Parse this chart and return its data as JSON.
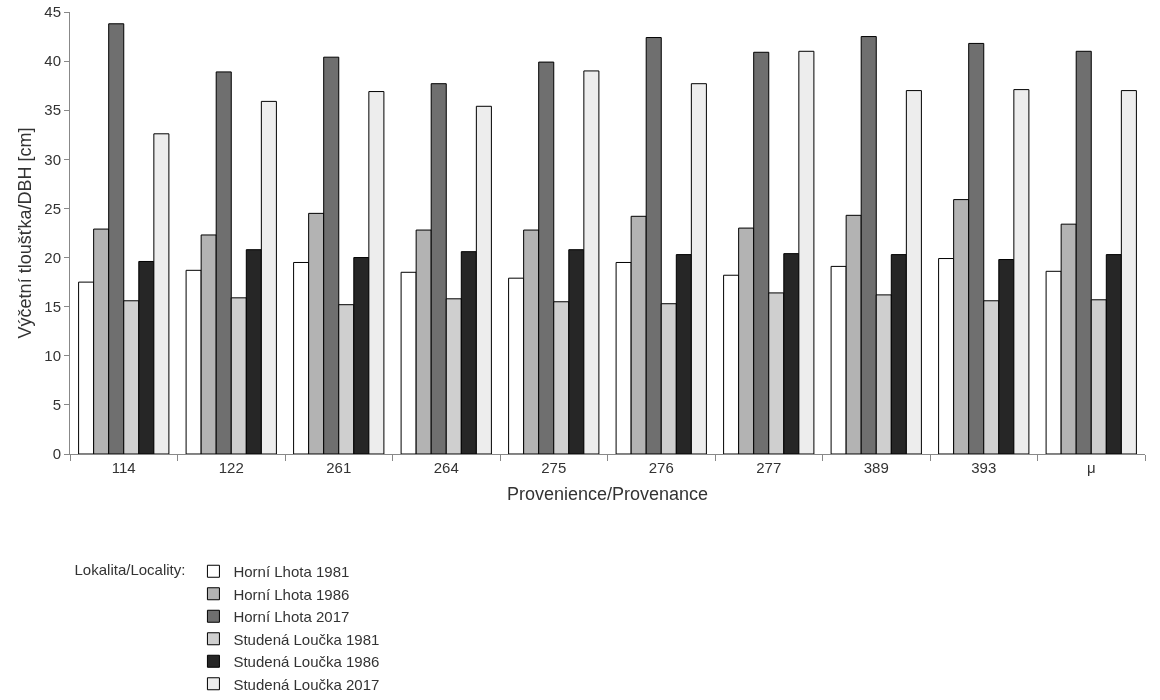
{
  "chart_data": {
    "type": "bar",
    "xlabel": "Provenience/Provenance",
    "ylabel": "Výčetní tloušťka/DBH [cm]",
    "legend_title": "Lokalita/Locality:",
    "legend": "bottom",
    "grid": false,
    "categories": [
      "114",
      "122",
      "261",
      "264",
      "275",
      "276",
      "277",
      "389",
      "393",
      "μ"
    ],
    "ylim": [
      0,
      45
    ],
    "yticks": [
      0,
      5,
      10,
      15,
      20,
      25,
      30,
      35,
      40,
      45
    ],
    "series": [
      {
        "name": "Horní Lhota 1981",
        "color": "#ffffff",
        "values": [
          17.5,
          18.7,
          19.5,
          18.5,
          17.9,
          19.5,
          18.2,
          19.1,
          19.9,
          18.6
        ]
      },
      {
        "name": "Horní Lhota 1986",
        "color": "#b3b3b3",
        "values": [
          22.9,
          22.3,
          24.5,
          22.8,
          22.8,
          24.2,
          23.0,
          24.3,
          25.9,
          23.4
        ]
      },
      {
        "name": "Horní Lhota 2017",
        "color": "#6f6f6f",
        "values": [
          43.8,
          38.9,
          40.4,
          37.7,
          39.9,
          42.4,
          40.9,
          42.5,
          41.8,
          41.0
        ]
      },
      {
        "name": "Studená Loučka 1981",
        "color": "#cfcfcf",
        "values": [
          15.6,
          15.9,
          15.2,
          15.8,
          15.5,
          15.3,
          16.4,
          16.2,
          15.6,
          15.7
        ]
      },
      {
        "name": "Studená Loučka 1986",
        "color": "#262626",
        "values": [
          19.6,
          20.8,
          20.0,
          20.6,
          20.8,
          20.3,
          20.4,
          20.3,
          19.8,
          20.3
        ]
      },
      {
        "name": "Studená Loučka 2017",
        "color": "#ededed",
        "values": [
          32.6,
          35.9,
          36.9,
          35.4,
          39.0,
          37.7,
          41.0,
          37.0,
          37.1,
          37.0
        ]
      }
    ]
  }
}
